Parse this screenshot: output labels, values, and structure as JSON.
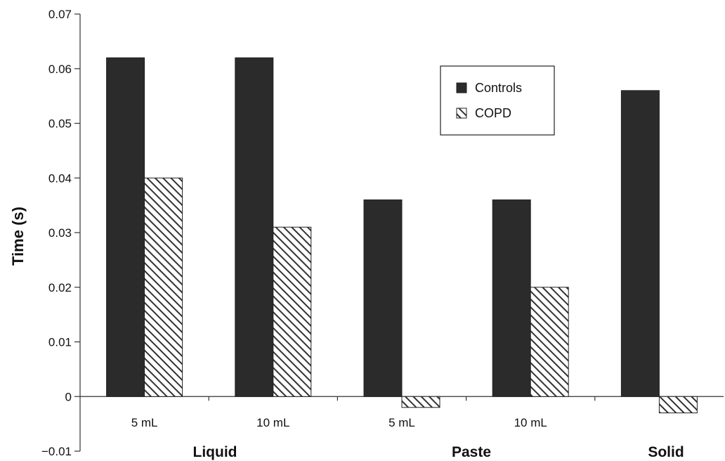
{
  "chart_data": {
    "type": "bar",
    "ylabel": "Time  (s)",
    "ylim": [
      -0.01,
      0.07
    ],
    "yticks": [
      "−0.01",
      "0",
      "0.01",
      "0.02",
      "0.03",
      "0.04",
      "0.05",
      "0.06",
      "0.07"
    ],
    "ytick_values": [
      -0.01,
      0,
      0.01,
      0.02,
      0.03,
      0.04,
      0.05,
      0.06,
      0.07
    ],
    "categories": [
      "5 mL",
      "10 mL",
      "5 mL",
      "10 mL",
      ""
    ],
    "groups": [
      "Liquid",
      "Paste",
      "Solid"
    ],
    "series": [
      {
        "name": "Controls",
        "values": [
          0.062,
          0.062,
          0.036,
          0.036,
          0.056
        ],
        "color": "#2b2b2b",
        "pattern": "solid"
      },
      {
        "name": "COPD",
        "values": [
          0.04,
          0.031,
          -0.002,
          0.02,
          -0.003
        ],
        "color": "#ffffff",
        "pattern": "diagonal-hatch"
      }
    ],
    "legend_position": "top-right",
    "grid": false
  }
}
